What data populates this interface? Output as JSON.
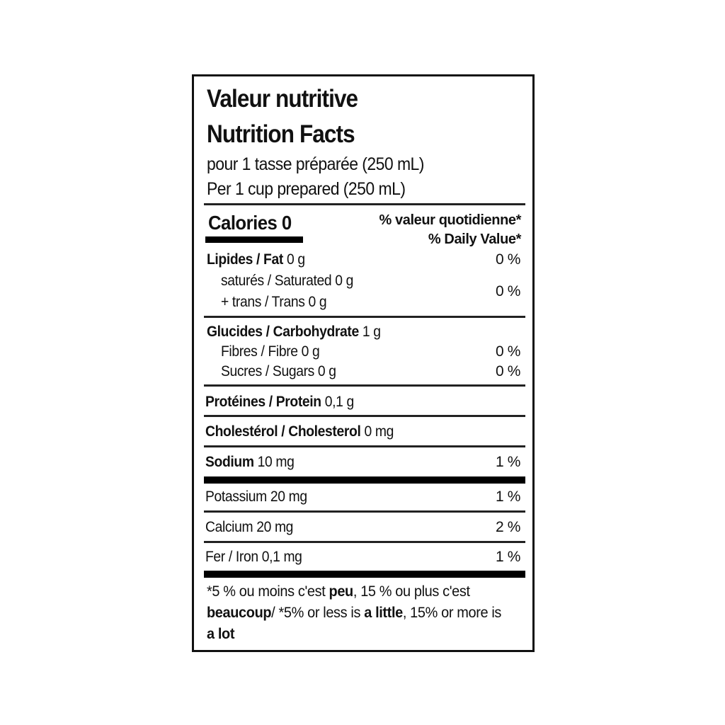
{
  "title_fr": "Valeur nutritive",
  "title_en": "Nutrition Facts",
  "serving_fr": "pour 1 tasse préparée (250 mL)",
  "serving_en": "Per 1 cup prepared (250 mL)",
  "calories": "Calories 0",
  "dv_header_fr": "% valeur quotidienne*",
  "dv_header_en": "% Daily Value*",
  "rows": {
    "fat": {
      "name": "Lipides / Fat",
      "amount": "0 g",
      "dv": "0 %"
    },
    "saturated": {
      "name": "saturés / Saturated 0 g"
    },
    "trans": {
      "name": "+ trans / Trans 0 g",
      "dv": "0 %"
    },
    "carb": {
      "name": "Glucides / Carbohydrate",
      "amount": "1 g"
    },
    "fibre": {
      "name": "Fibres / Fibre 0 g",
      "dv": "0 %"
    },
    "sugars": {
      "name": "Sucres / Sugars 0 g",
      "dv": "0 %"
    },
    "protein": {
      "name": "Protéines / Protein",
      "amount": "0,1 g"
    },
    "cholesterol": {
      "name": "Cholestérol / Cholesterol",
      "amount": "0 mg"
    },
    "sodium": {
      "name": "Sodium",
      "amount": "10 mg",
      "dv": "1 %"
    },
    "potassium": {
      "name": "Potassium 20 mg",
      "dv": "1 %"
    },
    "calcium": {
      "name": "Calcium 20 mg",
      "dv": "2 %"
    },
    "iron": {
      "name": "Fer / Iron 0,1 mg",
      "dv": "1 %"
    }
  },
  "footnote": {
    "p1": "*5 % ou moins c'est ",
    "b1": "peu",
    "p2": ", 15 % ou plus c'est ",
    "b2": "beaucoup",
    "p3": "/ *5% or less is ",
    "b3": "a little",
    "p4": ", 15% or more is ",
    "b4": "a lot"
  }
}
